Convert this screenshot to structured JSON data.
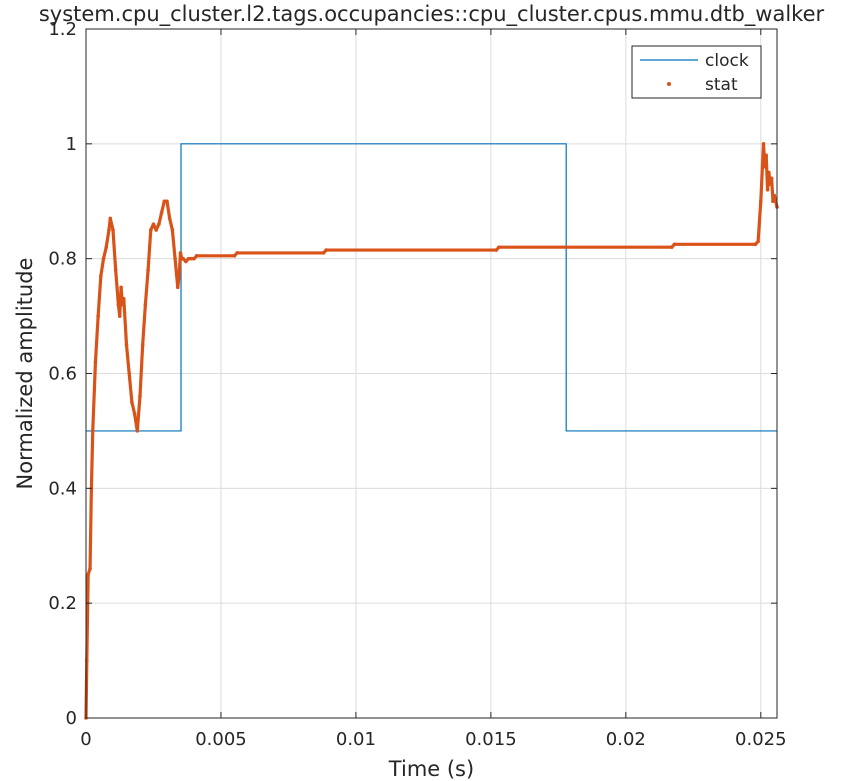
{
  "chart_data": {
    "type": "line",
    "title": "system.cpu_cluster.l2.tags.occupancies::cpu_cluster.cpus.mmu.dtb_walker",
    "xlabel": "Time (s)",
    "ylabel": "Normalized amplitude",
    "xlim": [
      0,
      0.0256
    ],
    "ylim": [
      0,
      1.2
    ],
    "x_ticks": [
      0,
      0.005,
      0.01,
      0.015,
      0.02,
      0.025
    ],
    "x_tick_labels": [
      "0",
      "0.005",
      "0.01",
      "0.015",
      "0.02",
      "0.025"
    ],
    "y_ticks": [
      0,
      0.2,
      0.4,
      0.6,
      0.8,
      1.0,
      1.2
    ],
    "y_tick_labels": [
      "0",
      "0.2",
      "0.4",
      "0.6",
      "0.8",
      "1",
      "1.2"
    ],
    "grid": true,
    "legend_position": "top-right",
    "series": [
      {
        "name": "clock",
        "style": "line",
        "color": "#0072BD",
        "x": [
          0,
          0.00352,
          0.00352,
          0.01779,
          0.01779,
          0.0256
        ],
        "y": [
          0.5,
          0.5,
          1.0,
          1.0,
          0.5,
          0.5
        ]
      },
      {
        "name": "stat",
        "style": "dots",
        "color": "#D95319",
        "x": [
          0,
          3e-05,
          8e-05,
          0.00015,
          0.0002,
          0.00025,
          0.00035,
          0.00045,
          0.00055,
          0.00065,
          0.00075,
          0.00085,
          0.0009,
          0.001,
          0.0011,
          0.0012,
          0.00125,
          0.0013,
          0.00135,
          0.0014,
          0.0015,
          0.0016,
          0.0017,
          0.0018,
          0.0019,
          0.002,
          0.0021,
          0.0022,
          0.0023,
          0.0024,
          0.0025,
          0.0026,
          0.0027,
          0.0028,
          0.0029,
          0.003,
          0.0031,
          0.0032,
          0.0033,
          0.0034,
          0.00345,
          0.0035,
          0.00355,
          0.0036,
          0.0037,
          0.0038,
          0.0039,
          0.004,
          0.0041,
          0.0055,
          0.0056,
          0.0088,
          0.0089,
          0.0152,
          0.0153,
          0.0217,
          0.0218,
          0.0248,
          0.0249,
          0.025,
          0.0251,
          0.02515,
          0.0252,
          0.02525,
          0.0253,
          0.02535,
          0.0254,
          0.02545,
          0.0255,
          0.0256
        ],
        "y": [
          0.0,
          0.1,
          0.25,
          0.26,
          0.4,
          0.5,
          0.62,
          0.7,
          0.77,
          0.8,
          0.82,
          0.85,
          0.87,
          0.85,
          0.78,
          0.72,
          0.7,
          0.75,
          0.72,
          0.73,
          0.65,
          0.6,
          0.55,
          0.53,
          0.5,
          0.56,
          0.65,
          0.72,
          0.78,
          0.85,
          0.86,
          0.85,
          0.86,
          0.88,
          0.9,
          0.9,
          0.87,
          0.85,
          0.8,
          0.75,
          0.77,
          0.81,
          0.8,
          0.8,
          0.795,
          0.8,
          0.8,
          0.8,
          0.805,
          0.805,
          0.81,
          0.81,
          0.815,
          0.815,
          0.82,
          0.82,
          0.825,
          0.825,
          0.83,
          0.9,
          1.0,
          0.96,
          0.98,
          0.92,
          0.95,
          0.93,
          0.94,
          0.9,
          0.91,
          0.89
        ]
      }
    ]
  }
}
